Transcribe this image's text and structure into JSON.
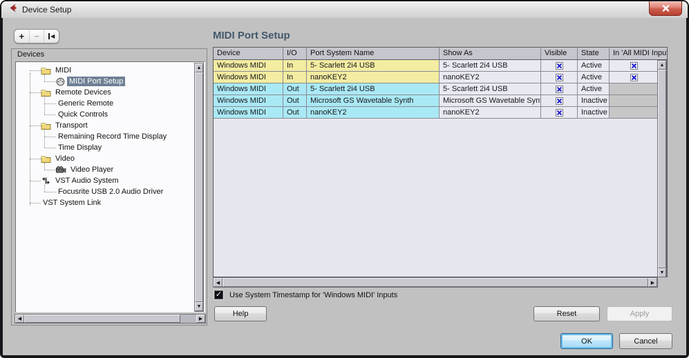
{
  "window": {
    "title": "Device Setup"
  },
  "heading": "MIDI Port Setup",
  "toolbar": {
    "add_label": "+",
    "remove_label": "−",
    "reset_label": "◀"
  },
  "devices_panel": {
    "label": "Devices",
    "tree": [
      {
        "label": "MIDI",
        "depth": 1,
        "icon": "folder",
        "selected": false
      },
      {
        "label": "MIDI Port Setup",
        "depth": 2,
        "icon": "midi-port",
        "selected": true
      },
      {
        "label": "Remote Devices",
        "depth": 1,
        "icon": "folder",
        "selected": false
      },
      {
        "label": "Generic Remote",
        "depth": 2,
        "icon": null,
        "selected": false
      },
      {
        "label": "Quick Controls",
        "depth": 2,
        "icon": null,
        "selected": false
      },
      {
        "label": "Transport",
        "depth": 1,
        "icon": "folder",
        "selected": false
      },
      {
        "label": "Remaining Record Time Display",
        "depth": 2,
        "icon": null,
        "selected": false
      },
      {
        "label": "Time Display",
        "depth": 2,
        "icon": null,
        "selected": false
      },
      {
        "label": "Video",
        "depth": 1,
        "icon": "folder",
        "selected": false
      },
      {
        "label": "Video Player",
        "depth": 2,
        "icon": "video",
        "selected": false
      },
      {
        "label": "VST Audio System",
        "depth": 1,
        "icon": "vst",
        "selected": false
      },
      {
        "label": "Focusrite USB 2.0 Audio Driver",
        "depth": 2,
        "icon": null,
        "selected": false
      },
      {
        "label": "VST System Link",
        "depth": 1,
        "icon": null,
        "selected": false
      }
    ]
  },
  "table": {
    "columns": [
      "Device",
      "I/O",
      "Port System Name",
      "Show As",
      "Visible",
      "State",
      "In 'All MIDI Inputs'"
    ],
    "rows": [
      {
        "device": "Windows MIDI",
        "io": "In",
        "port": "5- Scarlett 2i4 USB",
        "show_as": "5- Scarlett 2i4 USB",
        "visible": true,
        "state": "Active",
        "in_all": "checked"
      },
      {
        "device": "Windows MIDI",
        "io": "In",
        "port": "nanoKEY2",
        "show_as": "nanoKEY2",
        "visible": true,
        "state": "Active",
        "in_all": "checked"
      },
      {
        "device": "Windows MIDI",
        "io": "Out",
        "port": "5- Scarlett 2i4 USB",
        "show_as": "5- Scarlett 2i4 USB",
        "visible": true,
        "state": "Active",
        "in_all": "disabled"
      },
      {
        "device": "Windows MIDI",
        "io": "Out",
        "port": "Microsoft GS Wavetable Synth",
        "show_as": "Microsoft GS Wavetable Synth",
        "visible": true,
        "state": "Inactive",
        "in_all": "disabled"
      },
      {
        "device": "Windows MIDI",
        "io": "Out",
        "port": "nanoKEY2",
        "show_as": "nanoKEY2",
        "visible": true,
        "state": "Inactive",
        "in_all": "disabled"
      }
    ]
  },
  "timestamp_checkbox": {
    "checked": true,
    "label": "Use System Timestamp for 'Windows MIDI' Inputs"
  },
  "buttons": {
    "help": "Help",
    "reset": "Reset",
    "apply": "Apply",
    "ok": "OK",
    "cancel": "Cancel"
  },
  "colors": {
    "in_row": "#f3eca1",
    "out_row": "#a9e9f5",
    "neutral_cell": "#e9e9f1",
    "disabled_cell": "#c6c6c6",
    "selection": "#6f8094",
    "heading": "#42586b",
    "check_blue": "#2222cc"
  }
}
